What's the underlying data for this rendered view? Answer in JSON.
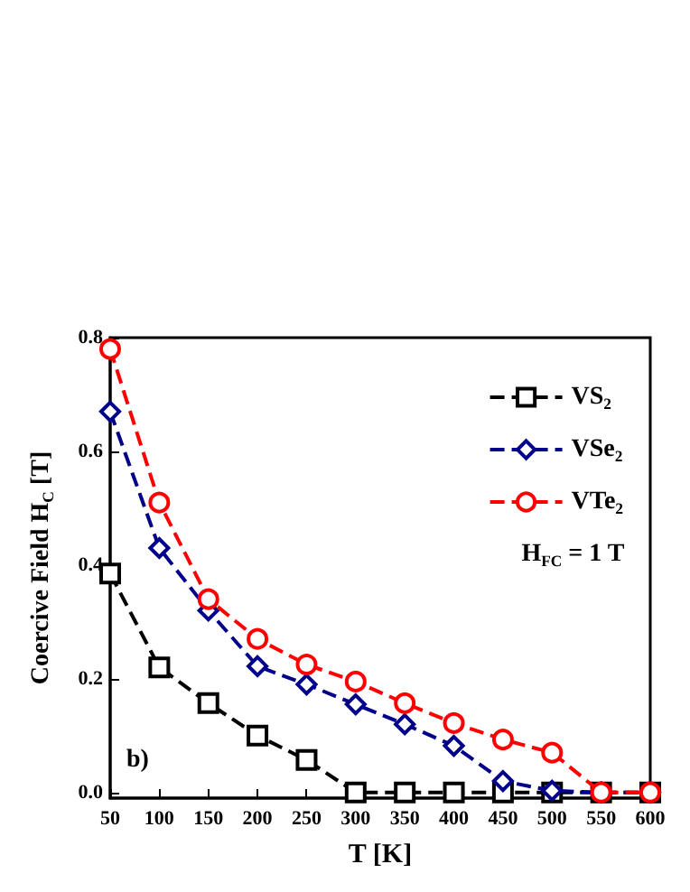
{
  "chart_data": {
    "type": "line",
    "xlabel": "T [K]",
    "ylabel": "Coercive Field H$_{C}$ [T]",
    "x": [
      50,
      100,
      150,
      200,
      250,
      300,
      350,
      400,
      450,
      500,
      550,
      600
    ],
    "series": [
      {
        "name": "VS$_{2}$",
        "color": "#000000",
        "marker": "square",
        "values": [
          0.385,
          0.22,
          0.157,
          0.1,
          0.057,
          0,
          0,
          0,
          0,
          0,
          0,
          0
        ]
      },
      {
        "name": "VSe$_{2}$",
        "color": "#00008b",
        "marker": "diamond",
        "values": [
          0.67,
          0.43,
          0.32,
          0.222,
          0.19,
          0.155,
          0.12,
          0.082,
          0.02,
          0.003,
          0,
          0
        ]
      },
      {
        "name": "VTe$_{2}$",
        "color": "#ff0000",
        "marker": "circle",
        "values": [
          0.78,
          0.51,
          0.34,
          0.27,
          0.225,
          0.195,
          0.157,
          0.122,
          0.093,
          0.07,
          0,
          0
        ]
      }
    ],
    "xlim": [
      50,
      600
    ],
    "xticks": [
      50,
      100,
      150,
      200,
      250,
      300,
      350,
      400,
      450,
      500,
      550,
      600
    ],
    "ylim": [
      -0.01,
      0.8
    ],
    "yticks": [
      {
        "value": 0,
        "label": "0.0"
      },
      0.2,
      0.4,
      0.6,
      0.8
    ],
    "line_style": "dashed",
    "legend": "top right",
    "grid": false,
    "annotations": [
      "H$_{FC}$ = 1 T",
      "b)"
    ]
  }
}
